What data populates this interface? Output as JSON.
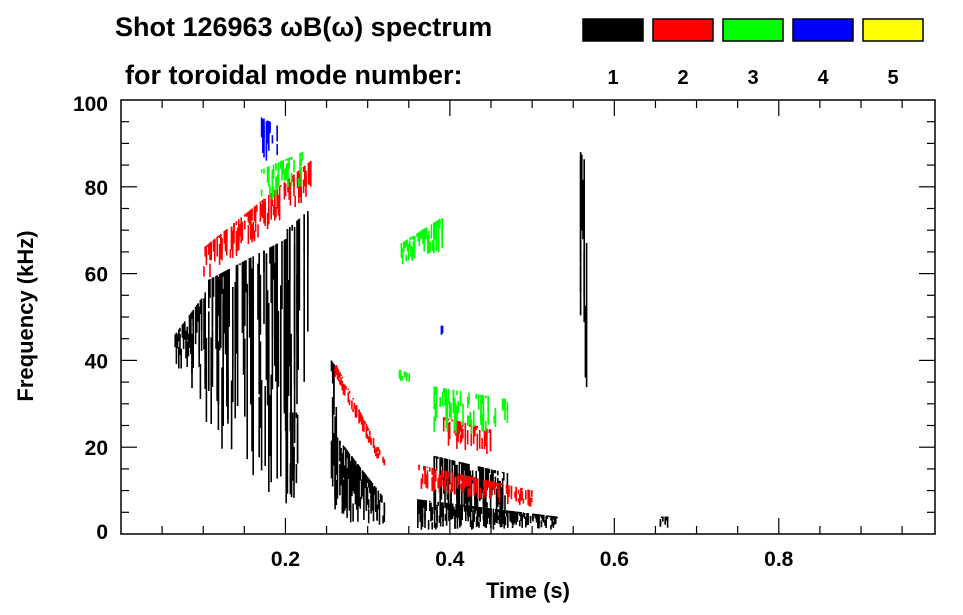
{
  "chart_data": {
    "type": "heatmap",
    "title_line1": "Shot 126963 ωB(ω) spectrum",
    "title_line2": "for toroidal mode number:",
    "xlabel": "Time (s)",
    "ylabel": "Frequency (kHz)",
    "xlim": [
      0.0,
      0.99
    ],
    "ylim": [
      0,
      100
    ],
    "xticks": [
      0.2,
      0.4,
      0.6,
      0.8
    ],
    "xtick_labels": [
      "0.2",
      "0.4",
      "0.6",
      "0.8"
    ],
    "yticks": [
      0,
      20,
      40,
      60,
      80,
      100
    ],
    "ytick_labels": [
      "0",
      "20",
      "40",
      "60",
      "80",
      "100"
    ],
    "legend": {
      "placement": "top-right",
      "entries": [
        {
          "label": "1",
          "color": "#000000"
        },
        {
          "label": "2",
          "color": "#ff0000"
        },
        {
          "label": "3",
          "color": "#00ff00"
        },
        {
          "label": "4",
          "color": "#0000ff"
        },
        {
          "label": "5",
          "color": "#ffff00"
        }
      ]
    },
    "features": [
      {
        "mode": 1,
        "t": [
          0.065,
          0.1
        ],
        "f_start": [
          38,
          46
        ],
        "f_end": [
          30,
          55
        ],
        "density": 0.9
      },
      {
        "mode": 1,
        "t": [
          0.1,
          0.2
        ],
        "f_start": [
          22,
          58
        ],
        "f_end": [
          3,
          68
        ],
        "density": 0.75
      },
      {
        "mode": 1,
        "t": [
          0.2,
          0.23
        ],
        "f_start": [
          5,
          70
        ],
        "f_end": [
          40,
          75
        ],
        "density": 0.6
      },
      {
        "mode": 2,
        "t": [
          0.1,
          0.23
        ],
        "f_start": [
          58,
          66
        ],
        "f_end": [
          78,
          86
        ],
        "density": 0.85
      },
      {
        "mode": 3,
        "t": [
          0.17,
          0.22
        ],
        "f_start": [
          76,
          84
        ],
        "f_end": [
          80,
          88
        ],
        "density": 0.7
      },
      {
        "mode": 4,
        "t": [
          0.17,
          0.19
        ],
        "f_start": [
          86,
          96
        ],
        "f_end": [
          86,
          94
        ],
        "density": 0.5
      },
      {
        "mode": 1,
        "t": [
          0.205,
          0.215
        ],
        "f_start": [
          8,
          28
        ],
        "f_end": [
          8,
          28
        ],
        "density": 0.9
      },
      {
        "mode": 1,
        "t": [
          0.255,
          0.32
        ],
        "f_start": [
          3,
          24
        ],
        "f_end": [
          2,
          8
        ],
        "density": 0.95
      },
      {
        "mode": 1,
        "t": [
          0.255,
          0.262
        ],
        "f_start": [
          20,
          40
        ],
        "f_end": [
          20,
          38
        ],
        "density": 0.8
      },
      {
        "mode": 2,
        "t": [
          0.258,
          0.32
        ],
        "f_start": [
          36,
          40
        ],
        "f_end": [
          14,
          17
        ],
        "density": 0.85
      },
      {
        "mode": 3,
        "t": [
          0.335,
          0.35
        ],
        "f_start": [
          35,
          38
        ],
        "f_end": [
          35,
          37
        ],
        "density": 0.8
      },
      {
        "mode": 3,
        "t": [
          0.34,
          0.39
        ],
        "f_start": [
          62,
          67
        ],
        "f_end": [
          65,
          73
        ],
        "density": 0.9
      },
      {
        "mode": 1,
        "t": [
          0.36,
          0.53
        ],
        "f_start": [
          1,
          8
        ],
        "f_end": [
          1,
          4
        ],
        "density": 0.95
      },
      {
        "mode": 1,
        "t": [
          0.38,
          0.47
        ],
        "f_start": [
          3,
          18
        ],
        "f_end": [
          3,
          14
        ],
        "density": 0.95
      },
      {
        "mode": 2,
        "t": [
          0.36,
          0.5
        ],
        "f_start": [
          10,
          16
        ],
        "f_end": [
          6,
          10
        ],
        "density": 0.8
      },
      {
        "mode": 2,
        "t": [
          0.39,
          0.45
        ],
        "f_start": [
          20,
          27
        ],
        "f_end": [
          18,
          24
        ],
        "density": 0.8
      },
      {
        "mode": 3,
        "t": [
          0.38,
          0.47
        ],
        "f_start": [
          22,
          34
        ],
        "f_end": [
          24,
          31
        ],
        "density": 0.6
      },
      {
        "mode": 4,
        "t": [
          0.38,
          0.4
        ],
        "f_start": [
          42,
          48
        ],
        "f_end": [
          42,
          48
        ],
        "density": 0.4
      },
      {
        "mode": 1,
        "t": [
          0.558,
          0.566
        ],
        "f_start": [
          32,
          88
        ],
        "f_end": [
          32,
          85
        ],
        "density": 0.8
      },
      {
        "mode": 1,
        "t": [
          0.655,
          0.665
        ],
        "f_start": [
          1,
          4
        ],
        "f_end": [
          1,
          4
        ],
        "density": 0.9
      }
    ]
  }
}
